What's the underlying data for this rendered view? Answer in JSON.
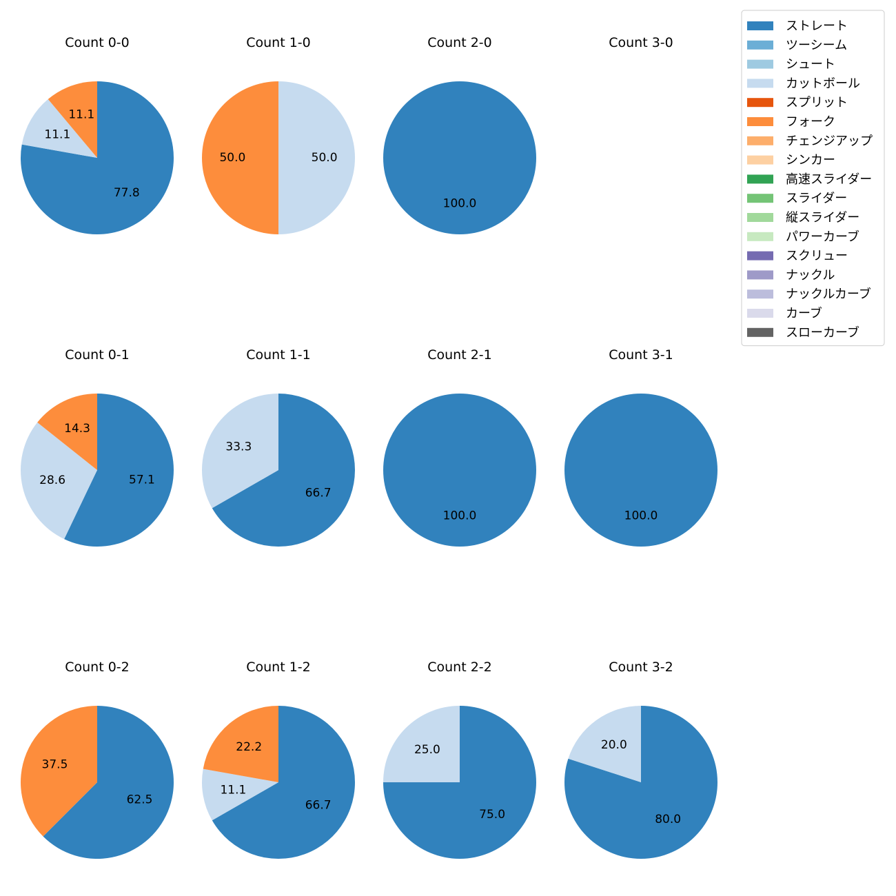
{
  "chart_data": {
    "type": "pie",
    "legend": {
      "placement": "top-right",
      "entries": [
        {
          "name": "ストレート",
          "color": "#3182bd"
        },
        {
          "name": "ツーシーム",
          "color": "#6baed6"
        },
        {
          "name": "シュート",
          "color": "#9ecae1"
        },
        {
          "name": "カットボール",
          "color": "#c6dbef"
        },
        {
          "name": "スプリット",
          "color": "#e6550d"
        },
        {
          "name": "フォーク",
          "color": "#fd8d3c"
        },
        {
          "name": "チェンジアップ",
          "color": "#fdae6b"
        },
        {
          "name": "シンカー",
          "color": "#fdd0a2"
        },
        {
          "name": "高速スライダー",
          "color": "#31a354"
        },
        {
          "name": "スライダー",
          "color": "#74c476"
        },
        {
          "name": "縦スライダー",
          "color": "#a1d99b"
        },
        {
          "name": "パワーカーブ",
          "color": "#c7e9c0"
        },
        {
          "name": "スクリュー",
          "color": "#756bb1"
        },
        {
          "name": "ナックル",
          "color": "#9e9ac8"
        },
        {
          "name": "ナックルカーブ",
          "color": "#bcbddc"
        },
        {
          "name": "カーブ",
          "color": "#dadaeb"
        },
        {
          "name": "スローカーブ",
          "color": "#636363"
        }
      ]
    },
    "charts": [
      {
        "title": "Count 0-0",
        "row": 0,
        "col": 0,
        "slices": [
          {
            "pitch": "ストレート",
            "value": 77.8,
            "label": "77.8"
          },
          {
            "pitch": "カットボール",
            "value": 11.1,
            "label": "11.1"
          },
          {
            "pitch": "フォーク",
            "value": 11.1,
            "label": "11.1"
          }
        ]
      },
      {
        "title": "Count 1-0",
        "row": 0,
        "col": 1,
        "slices": [
          {
            "pitch": "カットボール",
            "value": 50.0,
            "label": "50.0"
          },
          {
            "pitch": "フォーク",
            "value": 50.0,
            "label": "50.0"
          }
        ]
      },
      {
        "title": "Count 2-0",
        "row": 0,
        "col": 2,
        "slices": [
          {
            "pitch": "ストレート",
            "value": 100.0,
            "label": "100.0"
          }
        ]
      },
      {
        "title": "Count 3-0",
        "row": 0,
        "col": 3,
        "slices": []
      },
      {
        "title": "Count 0-1",
        "row": 1,
        "col": 0,
        "slices": [
          {
            "pitch": "ストレート",
            "value": 57.1,
            "label": "57.1"
          },
          {
            "pitch": "カットボール",
            "value": 28.6,
            "label": "28.6"
          },
          {
            "pitch": "フォーク",
            "value": 14.3,
            "label": "14.3"
          }
        ]
      },
      {
        "title": "Count 1-1",
        "row": 1,
        "col": 1,
        "slices": [
          {
            "pitch": "ストレート",
            "value": 66.7,
            "label": "66.7"
          },
          {
            "pitch": "カットボール",
            "value": 33.3,
            "label": "33.3"
          }
        ]
      },
      {
        "title": "Count 2-1",
        "row": 1,
        "col": 2,
        "slices": [
          {
            "pitch": "ストレート",
            "value": 100.0,
            "label": "100.0"
          }
        ]
      },
      {
        "title": "Count 3-1",
        "row": 1,
        "col": 3,
        "slices": [
          {
            "pitch": "ストレート",
            "value": 100.0,
            "label": "100.0"
          }
        ]
      },
      {
        "title": "Count 0-2",
        "row": 2,
        "col": 0,
        "slices": [
          {
            "pitch": "ストレート",
            "value": 62.5,
            "label": "62.5"
          },
          {
            "pitch": "フォーク",
            "value": 37.5,
            "label": "37.5"
          }
        ]
      },
      {
        "title": "Count 1-2",
        "row": 2,
        "col": 1,
        "slices": [
          {
            "pitch": "ストレート",
            "value": 66.7,
            "label": "66.7"
          },
          {
            "pitch": "カットボール",
            "value": 11.1,
            "label": "11.1"
          },
          {
            "pitch": "フォーク",
            "value": 22.2,
            "label": "22.2"
          }
        ]
      },
      {
        "title": "Count 2-2",
        "row": 2,
        "col": 2,
        "slices": [
          {
            "pitch": "ストレート",
            "value": 75.0,
            "label": "75.0"
          },
          {
            "pitch": "カットボール",
            "value": 25.0,
            "label": "25.0"
          }
        ]
      },
      {
        "title": "Count 3-2",
        "row": 2,
        "col": 3,
        "slices": [
          {
            "pitch": "ストレート",
            "value": 80.0,
            "label": "80.0"
          },
          {
            "pitch": "カットボール",
            "value": 20.0,
            "label": "20.0"
          }
        ]
      }
    ]
  }
}
